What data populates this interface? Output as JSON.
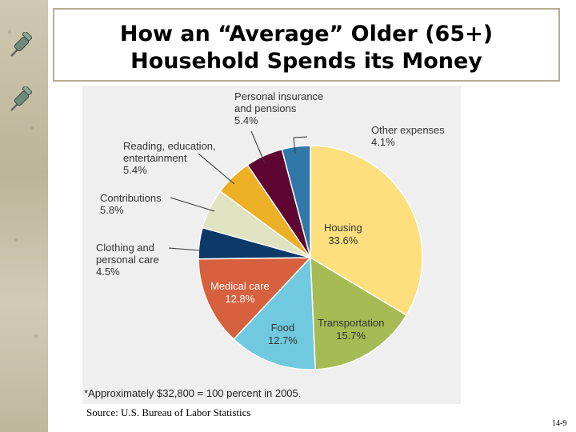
{
  "slide": {
    "title_line1": "How an “Average” Older (65+)",
    "title_line2": "Household Spends its Money",
    "source": "Source: U.S. Bureau of Labor Statistics",
    "page_number": "14-9"
  },
  "chart_data": {
    "type": "pie",
    "title": "",
    "footnote": "*Approximately $32,800 = 100 percent in 2005.",
    "slices": [
      {
        "label": "Housing",
        "value": 33.6,
        "value_label": "33.6%",
        "color": "#fde07d"
      },
      {
        "label": "Transportation",
        "value": 15.7,
        "value_label": "15.7%",
        "color": "#a7bb54"
      },
      {
        "label": "Food",
        "value": 12.7,
        "value_label": "12.7%",
        "color": "#70c9df"
      },
      {
        "label": "Medical care",
        "value": 12.8,
        "value_label": "12.8%",
        "color": "#d7603e"
      },
      {
        "label": "Clothing and personal care",
        "value": 4.5,
        "value_label": "4.5%",
        "color": "#0d3968"
      },
      {
        "label": "Contributions",
        "value": 5.8,
        "value_label": "5.8%",
        "color": "#dfe3c2"
      },
      {
        "label": "Reading, education, entertainment",
        "value": 5.4,
        "value_label": "5.4%",
        "color": "#ebb025"
      },
      {
        "label": "Personal insurance and pensions",
        "value": 5.4,
        "value_label": "5.4%",
        "color": "#5e0532"
      },
      {
        "label": "Other expenses",
        "value": 4.1,
        "value_label": "4.1%",
        "color": "#2f78a8"
      }
    ]
  },
  "labels": {
    "housing_1": "Housing",
    "transport_1": "Transportation",
    "food_1": "Food",
    "medical_1": "Medical care",
    "clothing_1": "Clothing and",
    "clothing_2": "personal care",
    "contrib_1": "Contributions",
    "reading_1": "Reading, education,",
    "reading_2": "entertainment",
    "insurance_1": "Personal insurance",
    "insurance_2": "and pensions",
    "other_1": "Other expenses"
  }
}
